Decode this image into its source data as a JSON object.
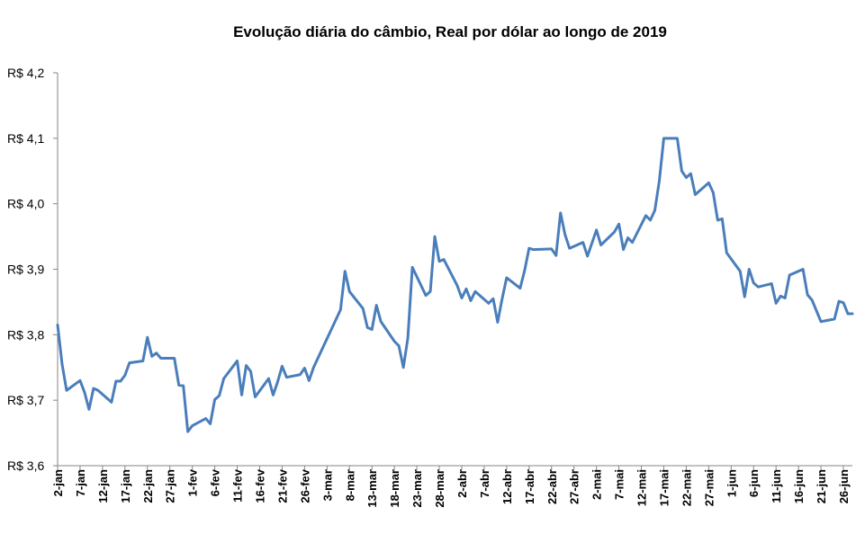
{
  "chart_data": {
    "type": "line",
    "title": "Evolução diária do câmbio, Real por dólar ao longo de 2019",
    "xlabel": "",
    "ylabel": "",
    "ylim": [
      3.6,
      4.2
    ],
    "yticks": [
      3.6,
      3.7,
      3.8,
      3.9,
      4.0,
      4.1,
      4.2
    ],
    "ytick_labels": [
      "R$ 3,6",
      "R$ 3,7",
      "R$ 3,8",
      "R$ 3,9",
      "R$ 4,0",
      "R$ 4,1",
      "R$ 4,2"
    ],
    "xlim": [
      "2019-01-02",
      "2019-06-28"
    ],
    "xtick_labels": [
      "2-jan",
      "7-jan",
      "12-jan",
      "17-jan",
      "22-jan",
      "27-jan",
      "1-fev",
      "6-fev",
      "11-fev",
      "16-fev",
      "21-fev",
      "26-fev",
      "3-mar",
      "8-mar",
      "13-mar",
      "18-mar",
      "23-mar",
      "28-mar",
      "2-abr",
      "7-abr",
      "12-abr",
      "17-abr",
      "22-abr",
      "27-abr",
      "2-mai",
      "7-mai",
      "12-mai",
      "17-mai",
      "22-mai",
      "27-mai",
      "1-jun",
      "6-jun",
      "11-jun",
      "16-jun",
      "21-jun",
      "26-jun"
    ],
    "grid": false,
    "legend": "none",
    "colors": {
      "line": "#4a7ebb",
      "axis": "#868686"
    },
    "series": [
      {
        "x": [
          "2019-01-02",
          "2019-01-03",
          "2019-01-04",
          "2019-01-07",
          "2019-01-08",
          "2019-01-09",
          "2019-01-10",
          "2019-01-11",
          "2019-01-14",
          "2019-01-15",
          "2019-01-16",
          "2019-01-17",
          "2019-01-18",
          "2019-01-21",
          "2019-01-22",
          "2019-01-23",
          "2019-01-24",
          "2019-01-25",
          "2019-01-28",
          "2019-01-29",
          "2019-01-30",
          "2019-01-31",
          "2019-02-01",
          "2019-02-04",
          "2019-02-05",
          "2019-02-06",
          "2019-02-07",
          "2019-02-08",
          "2019-02-11",
          "2019-02-12",
          "2019-02-13",
          "2019-02-14",
          "2019-02-15",
          "2019-02-18",
          "2019-02-19",
          "2019-02-20",
          "2019-02-21",
          "2019-02-22",
          "2019-02-25",
          "2019-02-26",
          "2019-02-27",
          "2019-02-28",
          "2019-03-06",
          "2019-03-07",
          "2019-03-08",
          "2019-03-11",
          "2019-03-12",
          "2019-03-13",
          "2019-03-14",
          "2019-03-15",
          "2019-03-18",
          "2019-03-19",
          "2019-03-20",
          "2019-03-21",
          "2019-03-22",
          "2019-03-25",
          "2019-03-26",
          "2019-03-27",
          "2019-03-28",
          "2019-03-29",
          "2019-04-01",
          "2019-04-02",
          "2019-04-03",
          "2019-04-04",
          "2019-04-05",
          "2019-04-08",
          "2019-04-09",
          "2019-04-10",
          "2019-04-11",
          "2019-04-12",
          "2019-04-15",
          "2019-04-16",
          "2019-04-17",
          "2019-04-18",
          "2019-04-22",
          "2019-04-23",
          "2019-04-24",
          "2019-04-25",
          "2019-04-26",
          "2019-04-29",
          "2019-04-30",
          "2019-05-02",
          "2019-05-03",
          "2019-05-06",
          "2019-05-07",
          "2019-05-08",
          "2019-05-09",
          "2019-05-10",
          "2019-05-13",
          "2019-05-14",
          "2019-05-15",
          "2019-05-16",
          "2019-05-17",
          "2019-05-20",
          "2019-05-21",
          "2019-05-22",
          "2019-05-23",
          "2019-05-24",
          "2019-05-27",
          "2019-05-28",
          "2019-05-29",
          "2019-05-30",
          "2019-05-31",
          "2019-06-03",
          "2019-06-04",
          "2019-06-05",
          "2019-06-06",
          "2019-06-07",
          "2019-06-10",
          "2019-06-11",
          "2019-06-12",
          "2019-06-13",
          "2019-06-14",
          "2019-06-17",
          "2019-06-18",
          "2019-06-19",
          "2019-06-21",
          "2019-06-24",
          "2019-06-25",
          "2019-06-26",
          "2019-06-27",
          "2019-06-28"
        ],
        "y": [
          3.815,
          3.755,
          3.715,
          3.73,
          3.712,
          3.686,
          3.718,
          3.715,
          3.697,
          3.729,
          3.729,
          3.738,
          3.757,
          3.76,
          3.796,
          3.767,
          3.772,
          3.764,
          3.764,
          3.723,
          3.722,
          3.652,
          3.661,
          3.672,
          3.664,
          3.701,
          3.707,
          3.733,
          3.76,
          3.708,
          3.753,
          3.744,
          3.705,
          3.733,
          3.708,
          3.728,
          3.752,
          3.735,
          3.739,
          3.749,
          3.73,
          3.75,
          3.838,
          3.897,
          3.866,
          3.84,
          3.811,
          3.808,
          3.845,
          3.82,
          3.79,
          3.783,
          3.75,
          3.795,
          3.903,
          3.86,
          3.866,
          3.95,
          3.912,
          3.915,
          3.875,
          3.856,
          3.87,
          3.852,
          3.866,
          3.848,
          3.855,
          3.819,
          3.855,
          3.887,
          3.871,
          3.898,
          3.932,
          3.93,
          3.931,
          3.921,
          3.986,
          3.953,
          3.932,
          3.941,
          3.92,
          3.96,
          3.937,
          3.957,
          3.969,
          3.93,
          3.948,
          3.941,
          3.982,
          3.975,
          3.99,
          4.035,
          4.1,
          4.1,
          4.05,
          4.04,
          4.046,
          4.014,
          4.032,
          4.017,
          3.975,
          3.977,
          3.925,
          3.897,
          3.858,
          3.9,
          3.879,
          3.873,
          3.878,
          3.848,
          3.859,
          3.856,
          3.891,
          3.9,
          3.861,
          3.853,
          3.82,
          3.824,
          3.851,
          3.849,
          3.832,
          3.832
        ]
      }
    ]
  }
}
